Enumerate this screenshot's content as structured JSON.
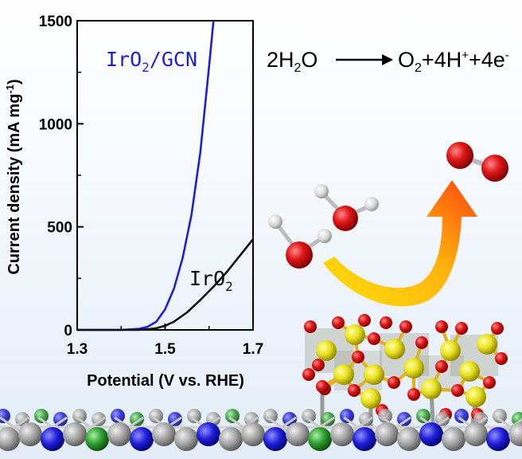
{
  "chart_data": {
    "type": "line",
    "xlabel": "Potential (V vs. RHE)",
    "ylabel": "Current density (mA mg",
    "ylabel_superscript": "-1",
    "ylabel_suffix": ")",
    "xlim": [
      1.3,
      1.7
    ],
    "ylim": [
      0,
      1500
    ],
    "xticks": [
      "1.3",
      "1.5",
      "1.7"
    ],
    "yticks": [
      "0",
      "500",
      "1000",
      "1500"
    ],
    "series": [
      {
        "name": "IrO2/GCN",
        "label_main": "IrO",
        "label_sub": "2",
        "label_tail": "/GCN",
        "color": "#1f1fd6",
        "x": [
          1.3,
          1.4,
          1.44,
          1.46,
          1.48,
          1.5,
          1.52,
          1.54,
          1.56,
          1.58,
          1.6,
          1.61
        ],
        "y": [
          0,
          0,
          5,
          15,
          40,
          100,
          200,
          350,
          560,
          860,
          1280,
          1500
        ]
      },
      {
        "name": "IrO2",
        "label_main": "IrO",
        "label_sub": "2",
        "label_tail": "",
        "color": "#111111",
        "x": [
          1.3,
          1.44,
          1.46,
          1.48,
          1.5,
          1.52,
          1.55,
          1.58,
          1.61,
          1.64,
          1.67,
          1.7
        ],
        "y": [
          0,
          0,
          3,
          8,
          20,
          40,
          85,
          145,
          210,
          280,
          360,
          440
        ]
      }
    ]
  },
  "equation": {
    "coef": "2H",
    "sub2": "2",
    "reactant_tail": "O",
    "product_o": "O",
    "product_sub": "2",
    "proton": "+4H",
    "proton_sup": "+",
    "electron": "+4e",
    "electron_sup": "-"
  },
  "colors": {
    "oxygen": "#d40d0d",
    "hydrogen": "#d8d8d8",
    "iridium": "#e6e01e",
    "carbon": "#9a9a9a",
    "nitrogen": "#2323d8",
    "chlorine_green": "#2f9e2f",
    "arrow_start": "#ffe000",
    "arrow_end": "#ff4000"
  }
}
